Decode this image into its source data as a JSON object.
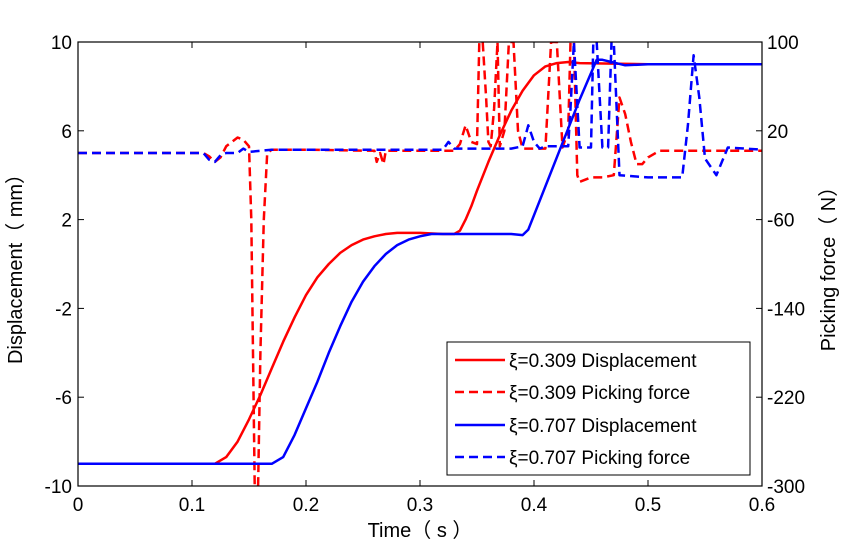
{
  "chart_data": {
    "type": "line",
    "xlabel": "Time（ s ）",
    "ylabel_left": "Displacement（ mm）",
    "ylabel_right": "Picking force（ N）",
    "xlim": [
      0,
      0.6
    ],
    "ylim_left": [
      -10,
      10
    ],
    "ylim_right": [
      -300,
      100
    ],
    "x_ticks": [
      "0",
      "0.1",
      "0.2",
      "0.3",
      "0.4",
      "0.5",
      "0.6"
    ],
    "y_left_ticks": [
      "10",
      "6",
      "2",
      "-2",
      "-6",
      "-10"
    ],
    "y_right_ticks": [
      "100",
      "20",
      "-60",
      "-140",
      "-220",
      "-300"
    ],
    "grid": false,
    "legend_position": "bottom-right",
    "series": [
      {
        "name": "ξ=0.309 Displacement",
        "color": "#ff0000",
        "dash": "solid",
        "axis": "left",
        "x": [
          0,
          0.12,
          0.13,
          0.14,
          0.15,
          0.16,
          0.17,
          0.18,
          0.19,
          0.2,
          0.21,
          0.22,
          0.23,
          0.24,
          0.25,
          0.26,
          0.27,
          0.28,
          0.3,
          0.32,
          0.33,
          0.335,
          0.34,
          0.345,
          0.35,
          0.36,
          0.37,
          0.38,
          0.39,
          0.4,
          0.41,
          0.42,
          0.43,
          0.44,
          0.5,
          0.6
        ],
        "y": [
          -9.0,
          -9.0,
          -8.7,
          -8.0,
          -7.0,
          -5.9,
          -4.7,
          -3.5,
          -2.4,
          -1.4,
          -0.6,
          0.0,
          0.5,
          0.85,
          1.1,
          1.25,
          1.35,
          1.4,
          1.4,
          1.35,
          1.35,
          1.5,
          2.0,
          2.6,
          3.3,
          4.6,
          5.8,
          6.9,
          7.8,
          8.5,
          8.9,
          9.05,
          9.1,
          9.05,
          9.0,
          9.0
        ]
      },
      {
        "name": "ξ=0.309 Picking force",
        "color": "#ff0000",
        "dash": "dashed",
        "axis": "right",
        "x": [
          0,
          0.11,
          0.115,
          0.12,
          0.125,
          0.13,
          0.14,
          0.145,
          0.15,
          0.152,
          0.155,
          0.158,
          0.16,
          0.163,
          0.166,
          0.17,
          0.18,
          0.2,
          0.26,
          0.262,
          0.265,
          0.268,
          0.27,
          0.3,
          0.33,
          0.335,
          0.34,
          0.345,
          0.35,
          0.352,
          0.355,
          0.358,
          0.36,
          0.362,
          0.365,
          0.368,
          0.37,
          0.374,
          0.378,
          0.382,
          0.386,
          0.39,
          0.41,
          0.415,
          0.42,
          0.425,
          0.43,
          0.432,
          0.435,
          0.438,
          0.44,
          0.45,
          0.46,
          0.47,
          0.475,
          0.48,
          0.485,
          0.49,
          0.495,
          0.5,
          0.51,
          0.55,
          0.6
        ],
        "y": [
          0,
          0,
          -3,
          -8,
          -4,
          6,
          14,
          12,
          6,
          -60,
          -300,
          -300,
          -180,
          -60,
          0,
          3,
          3,
          3,
          2,
          -8,
          0,
          -10,
          2,
          2,
          2,
          8,
          25,
          10,
          8,
          100,
          100,
          50,
          10,
          6,
          40,
          100,
          6,
          20,
          100,
          100,
          20,
          4,
          4,
          100,
          100,
          5,
          20,
          100,
          100,
          -20,
          -26,
          -22,
          -22,
          -20,
          50,
          35,
          10,
          -10,
          -10,
          -4,
          2,
          2,
          2
        ]
      },
      {
        "name": "ξ=0.707 Displacement",
        "color": "#0000ff",
        "dash": "solid",
        "axis": "left",
        "x": [
          0,
          0.17,
          0.18,
          0.19,
          0.2,
          0.21,
          0.22,
          0.23,
          0.24,
          0.25,
          0.26,
          0.27,
          0.28,
          0.29,
          0.3,
          0.31,
          0.32,
          0.38,
          0.39,
          0.395,
          0.4,
          0.41,
          0.42,
          0.43,
          0.44,
          0.45,
          0.455,
          0.46,
          0.48,
          0.5,
          0.6
        ],
        "y": [
          -9.0,
          -9.0,
          -8.7,
          -7.7,
          -6.5,
          -5.3,
          -4.0,
          -2.8,
          -1.7,
          -0.8,
          -0.1,
          0.45,
          0.85,
          1.1,
          1.25,
          1.35,
          1.35,
          1.35,
          1.3,
          1.55,
          2.2,
          3.5,
          4.8,
          6.1,
          7.4,
          8.6,
          9.2,
          9.2,
          8.95,
          9.0,
          9.0
        ]
      },
      {
        "name": "ξ=0.707 Picking force",
        "color": "#0000ff",
        "dash": "dashed",
        "axis": "right",
        "x": [
          0,
          0.11,
          0.115,
          0.12,
          0.125,
          0.13,
          0.14,
          0.145,
          0.15,
          0.16,
          0.17,
          0.2,
          0.3,
          0.32,
          0.325,
          0.33,
          0.38,
          0.39,
          0.395,
          0.4,
          0.405,
          0.41,
          0.42,
          0.43,
          0.432,
          0.435,
          0.44,
          0.45,
          0.452,
          0.455,
          0.46,
          0.465,
          0.468,
          0.47,
          0.475,
          0.5,
          0.52,
          0.53,
          0.535,
          0.54,
          0.545,
          0.55,
          0.56,
          0.57,
          0.6
        ],
        "y": [
          0,
          0,
          -6,
          -8,
          -2,
          0,
          0,
          4,
          1,
          2,
          3,
          3,
          3,
          3,
          10,
          4,
          4,
          6,
          25,
          10,
          4,
          6,
          6,
          6,
          40,
          100,
          5,
          5,
          100,
          100,
          5,
          5,
          100,
          100,
          -20,
          -22,
          -22,
          -22,
          25,
          88,
          50,
          -5,
          -20,
          5,
          3
        ]
      }
    ]
  }
}
